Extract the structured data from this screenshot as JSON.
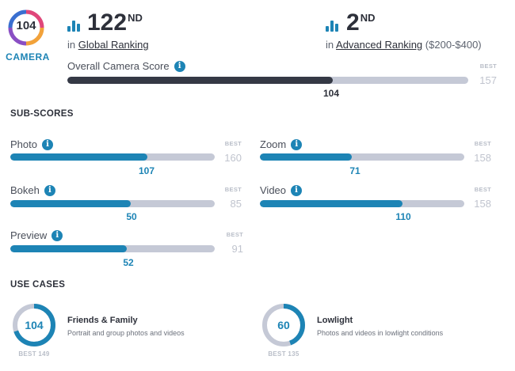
{
  "badge": {
    "score": "104",
    "label": "CAMERA"
  },
  "global_rank": {
    "number": "122",
    "suffix": "ND",
    "prefix": "in",
    "link": "Global Ranking"
  },
  "advanced_rank": {
    "number": "2",
    "suffix": "ND",
    "prefix": "in",
    "link": "Advanced Ranking",
    "range": "($200-$400)"
  },
  "overall": {
    "label": "Overall Camera Score",
    "score": "104",
    "best_label": "BEST",
    "best": "157",
    "fraction": 0.662
  },
  "sub_scores_title": "SUB-SCORES",
  "sub_scores": [
    {
      "label": "Photo",
      "score": "107",
      "best_label": "BEST",
      "best": "160",
      "fraction": 0.669
    },
    {
      "label": "Zoom",
      "score": "71",
      "best_label": "BEST",
      "best": "158",
      "fraction": 0.449
    },
    {
      "label": "Bokeh",
      "score": "50",
      "best_label": "BEST",
      "best": "85",
      "fraction": 0.588
    },
    {
      "label": "Video",
      "score": "110",
      "best_label": "BEST",
      "best": "158",
      "fraction": 0.696
    },
    {
      "label": "Preview",
      "score": "52",
      "best_label": "BEST",
      "best": "91",
      "fraction": 0.571
    }
  ],
  "use_cases_title": "USE CASES",
  "use_cases": [
    {
      "score": "104",
      "best": "BEST 149",
      "fraction": 0.698,
      "title": "Friends & Family",
      "desc": "Portrait and group photos and videos"
    },
    {
      "score": "60",
      "best": "BEST 135",
      "fraction": 0.444,
      "title": "Lowlight",
      "desc": "Photos and videos in lowlight conditions"
    }
  ],
  "colors": {
    "accent": "#1d84b5",
    "dark": "#353945",
    "track": "#c5c9d6",
    "muted": "#b9bec8"
  },
  "icons": {
    "ranking": "bar-chart-icon",
    "info": "info-icon"
  }
}
